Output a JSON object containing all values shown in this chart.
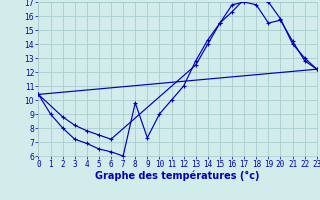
{
  "xlabel": "Graphe des températures (°c)",
  "xlim": [
    0,
    23
  ],
  "ylim": [
    6,
    17
  ],
  "yticks": [
    6,
    7,
    8,
    9,
    10,
    11,
    12,
    13,
    14,
    15,
    16,
    17
  ],
  "xticks": [
    0,
    1,
    2,
    3,
    4,
    5,
    6,
    7,
    8,
    9,
    10,
    11,
    12,
    13,
    14,
    15,
    16,
    17,
    18,
    19,
    20,
    21,
    22,
    23
  ],
  "bg_color": "#d2ecec",
  "grid_color": "#a8cccc",
  "line_color": "#0000bb",
  "line1_x": [
    0,
    1,
    2,
    3,
    4,
    5,
    6,
    7,
    8,
    9,
    10,
    11,
    12,
    13,
    14,
    15,
    16,
    17,
    18,
    19,
    20,
    21,
    22,
    23
  ],
  "line1_y": [
    10.4,
    9.0,
    8.0,
    7.2,
    6.9,
    6.5,
    6.3,
    6.0,
    9.8,
    7.3,
    9.0,
    10.0,
    11.0,
    12.8,
    14.3,
    15.5,
    16.3,
    17.2,
    17.2,
    17.0,
    15.8,
    14.0,
    13.0,
    12.2
  ],
  "line2_x": [
    0,
    2,
    3,
    4,
    5,
    6,
    13,
    14,
    15,
    16,
    17,
    18,
    19,
    20,
    21,
    22,
    23
  ],
  "line2_y": [
    10.4,
    8.8,
    8.2,
    7.8,
    7.5,
    7.2,
    12.5,
    14.0,
    15.5,
    16.8,
    17.0,
    16.8,
    15.5,
    15.7,
    14.2,
    12.8,
    12.2
  ],
  "line3_x": [
    0,
    23
  ],
  "line3_y": [
    10.4,
    12.2
  ],
  "tick_fontsize": 5.5,
  "xlabel_fontsize": 7.0
}
